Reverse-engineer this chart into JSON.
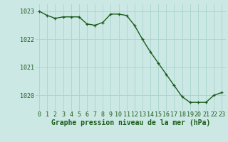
{
  "x": [
    0,
    1,
    2,
    3,
    4,
    5,
    6,
    7,
    8,
    9,
    10,
    11,
    12,
    13,
    14,
    15,
    16,
    17,
    18,
    19,
    20,
    21,
    22,
    23
  ],
  "y": [
    1023.0,
    1022.85,
    1022.75,
    1022.8,
    1022.8,
    1022.8,
    1022.55,
    1022.5,
    1022.6,
    1022.9,
    1022.9,
    1022.85,
    1022.5,
    1022.0,
    1021.55,
    1021.15,
    1020.75,
    1020.35,
    1019.95,
    1019.75,
    1019.75,
    1019.75,
    1020.0,
    1020.1
  ],
  "line_color": "#1a5c1a",
  "marker_color": "#1a5c1a",
  "bg_color": "#cce8e4",
  "grid_color": "#a8d4ce",
  "xlabel": "Graphe pression niveau de la mer (hPa)",
  "xlabel_color": "#1a5c1a",
  "tick_label_color": "#1a5c1a",
  "ylim": [
    1019.45,
    1023.25
  ],
  "yticks": [
    1020,
    1021,
    1022,
    1023
  ],
  "xticks": [
    0,
    1,
    2,
    3,
    4,
    5,
    6,
    7,
    8,
    9,
    10,
    11,
    12,
    13,
    14,
    15,
    16,
    17,
    18,
    19,
    20,
    21,
    22,
    23
  ],
  "xlabel_fontsize": 7.0,
  "tick_fontsize": 6.0,
  "line_width": 1.0,
  "marker_size": 3.5
}
